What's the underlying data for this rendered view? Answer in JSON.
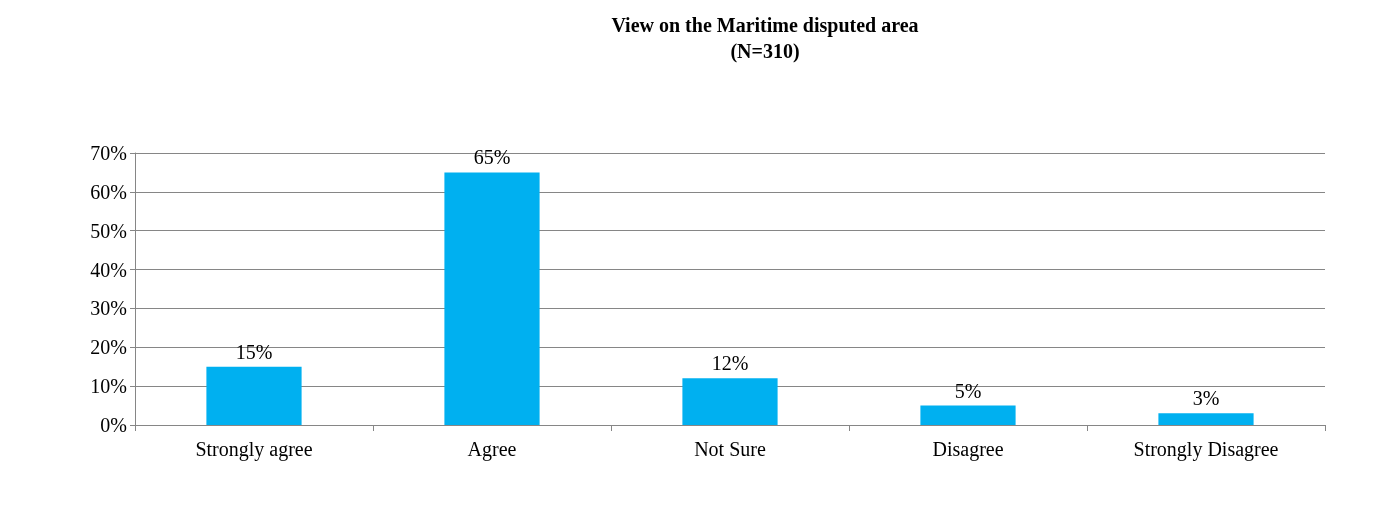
{
  "chart_data": {
    "type": "bar",
    "title": "View on the Maritime disputed area",
    "subtitle": "(N=310)",
    "categories": [
      "Strongly agree",
      "Agree",
      "Not Sure",
      "Disagree",
      "Strongly Disagree"
    ],
    "values": [
      15,
      65,
      12,
      5,
      3
    ],
    "color": "#00b0f0",
    "value_labels": [
      "15%",
      "65%",
      "12%",
      "5%",
      "3%"
    ],
    "ylim": [
      0,
      70
    ],
    "yticks": [
      {
        "value": 0,
        "label": "0%"
      },
      {
        "value": 10,
        "label": "10%"
      },
      {
        "value": 20,
        "label": "20%"
      },
      {
        "value": 30,
        "label": "30%"
      },
      {
        "value": 40,
        "label": "40%"
      },
      {
        "value": 50,
        "label": "50%"
      },
      {
        "value": 60,
        "label": "60%"
      },
      {
        "value": 70,
        "label": "70%"
      }
    ],
    "grid": "y"
  }
}
